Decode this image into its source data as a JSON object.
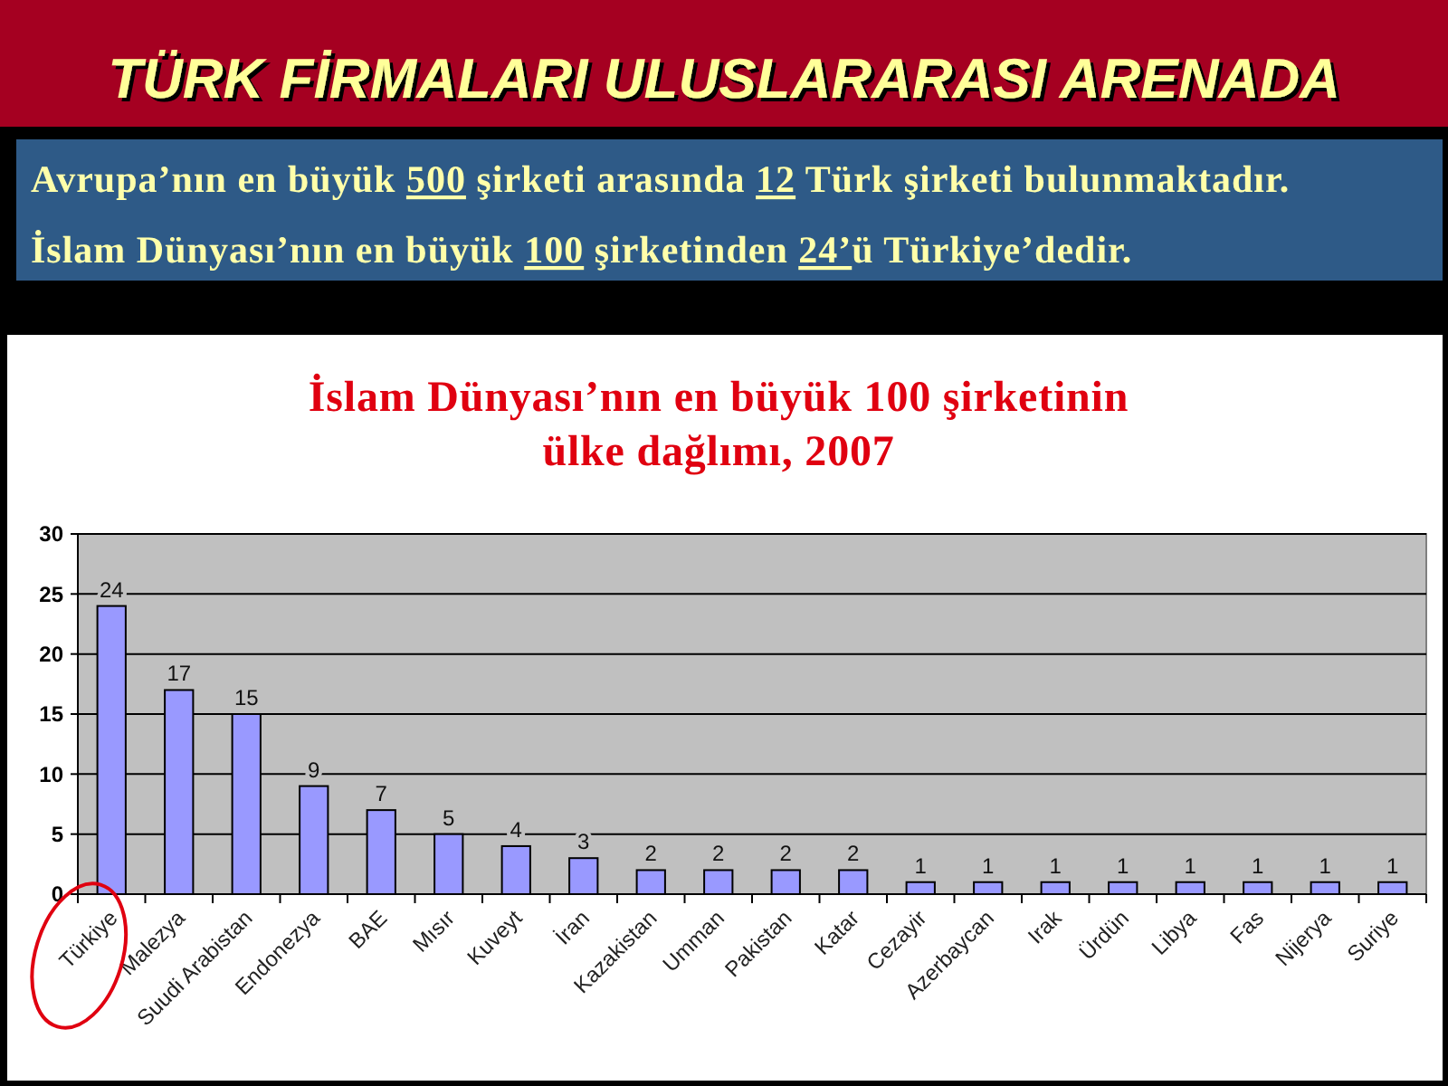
{
  "chart_data": {
    "type": "bar",
    "title": "TÜRK FİRMALARI ULUSLARARASI ARENADA",
    "subtitle": "İslam Dünyası’nın en büyük 100 şirketinin ülke dağlımı, 2007",
    "annotations": [
      "Avrupa’nın en büyük 500 şirketi arasında 12 Türk şirketi bulunmaktadır.",
      "İslam Dünyası’nın en büyük 100 şirketinden 24’ü Türkiye’dedir."
    ],
    "categories": [
      "Türkiye",
      "Malezya",
      "Suudi Arabistan",
      "Endonezya",
      "BAE",
      "Mısır",
      "Kuveyt",
      "İran",
      "Kazakistan",
      "Umman",
      "Pakistan",
      "Katar",
      "Cezayir",
      "Azerbaycan",
      "Irak",
      "Ürdün",
      "Libya",
      "Fas",
      "Nijerya",
      "Suriye"
    ],
    "values": [
      24,
      17,
      15,
      9,
      7,
      5,
      4,
      3,
      2,
      2,
      2,
      2,
      1,
      1,
      1,
      1,
      1,
      1,
      1,
      1
    ],
    "color": "#9999ff",
    "ylim": [
      0,
      30
    ],
    "yticks": [
      0,
      5,
      10,
      15,
      20,
      25,
      30
    ],
    "grid": "y",
    "data_labels": true
  }
}
